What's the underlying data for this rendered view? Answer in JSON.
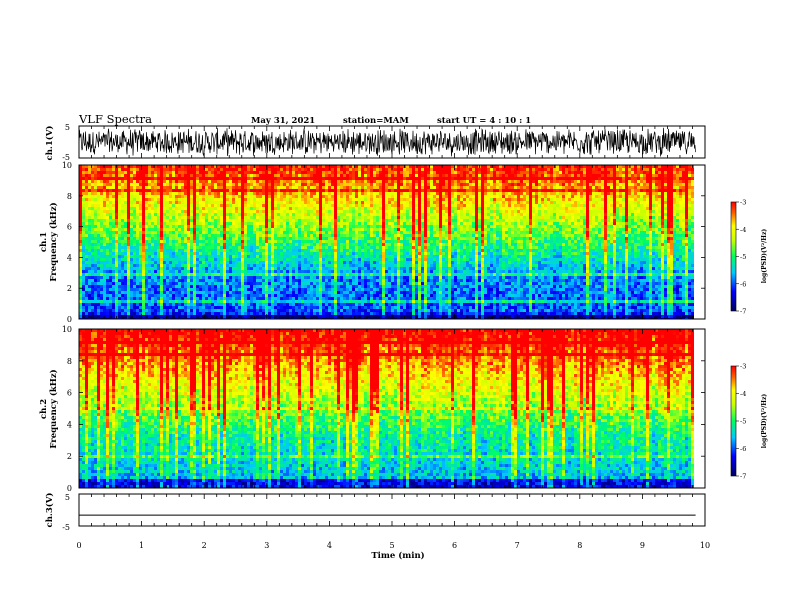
{
  "header": {
    "title": "VLF Spectra",
    "date": "May 31, 2021",
    "station": "station=MAM",
    "start": "start  UT =   4 : 10 : 1"
  },
  "chart_data": [
    {
      "type": "line",
      "panel": "ch1-waveform",
      "ylabel": "ch.1(V)",
      "ylim": [
        -5,
        5
      ],
      "y_ticks": [
        "5",
        "-5"
      ],
      "description_values": "dense noisy waveform filling roughly -4.5 to 4.5 V"
    },
    {
      "type": "heatmap",
      "panel": "ch1-spectrogram",
      "ylabel": "ch.1\nFrequency (kHz)",
      "ylim": [
        0,
        10
      ],
      "y_ticks": [
        "0",
        "2",
        "4",
        "6",
        "8",
        "10"
      ],
      "colorbar": {
        "label": "log(PSD)(V²/Hz)",
        "min": -7,
        "max": -3,
        "ticks": [
          "-3",
          "-4",
          "-5",
          "-6",
          "-7"
        ]
      }
    },
    {
      "type": "heatmap",
      "panel": "ch2-spectrogram",
      "ylabel": "ch.2\nFrequency (kHz)",
      "ylim": [
        0,
        10
      ],
      "y_ticks": [
        "0",
        "2",
        "4",
        "6",
        "8",
        "10"
      ],
      "colorbar": {
        "label": "log(PSD)(V²/Hz)",
        "min": -7,
        "max": -3,
        "ticks": [
          "-3",
          "-4",
          "-5",
          "-6",
          "-7"
        ]
      }
    },
    {
      "type": "line",
      "panel": "ch3-waveform",
      "ylabel": "ch.3(V)",
      "ylim": [
        -5,
        5
      ],
      "y_ticks": [
        "5",
        "-5"
      ],
      "y_value": -1.6
    }
  ],
  "x_axis": {
    "label": "Time  (min)",
    "range": [
      0,
      10
    ],
    "ticks": [
      "0",
      "1",
      "2",
      "3",
      "4",
      "5",
      "6",
      "7",
      "8",
      "9",
      "10"
    ],
    "data_end": 9.85
  },
  "labels": {
    "ch1_v": "ch.1(V)",
    "ch1_top": "ch.1",
    "ch1_freq": "Frequency  (kHz)",
    "ch2_top": "ch.2",
    "ch2_freq": "Frequency  (kHz)",
    "ch3_v": "ch.3(V)",
    "cbar_unit": "log(PSD)(V²/Hz)"
  },
  "colors": {
    "scale": [
      "#000080",
      "#0000ff",
      "#00bfff",
      "#00ff80",
      "#80ff00",
      "#ffff00",
      "#ff8000",
      "#ff0000"
    ]
  }
}
